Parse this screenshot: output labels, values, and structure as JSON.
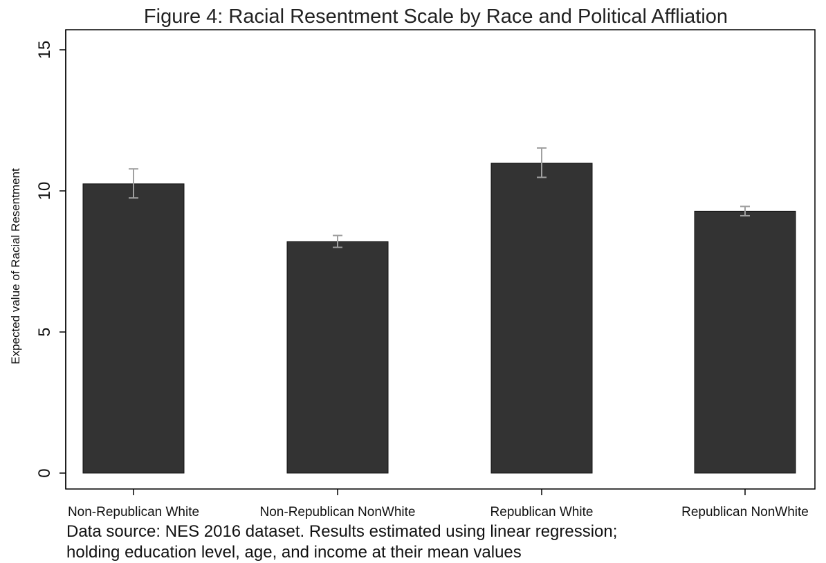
{
  "chart_data": {
    "type": "bar",
    "title": "Figure 4: Racial Resentment Scale by Race and Political Affliation",
    "ylabel": "Expected value of Racial Resentment",
    "xlabel": "",
    "categories": [
      "Non-Republican White",
      "Non-Republican NonWhite",
      "Republican White",
      "Republican NonWhite"
    ],
    "values": [
      10.25,
      8.2,
      10.98,
      9.28
    ],
    "error_low": [
      9.75,
      8.0,
      10.48,
      9.12
    ],
    "error_high": [
      10.78,
      8.42,
      11.52,
      9.45
    ],
    "ylim": [
      0,
      15
    ],
    "yticks": [
      0,
      5,
      10,
      15
    ],
    "grid": false,
    "bar_color": "#333333",
    "error_bar_color": "#a0a0a0"
  },
  "footnote": {
    "line1": "Data source: NES 2016 dataset. Results estimated using linear regression;",
    "line2": "holding education level, age, and income at their mean values"
  }
}
